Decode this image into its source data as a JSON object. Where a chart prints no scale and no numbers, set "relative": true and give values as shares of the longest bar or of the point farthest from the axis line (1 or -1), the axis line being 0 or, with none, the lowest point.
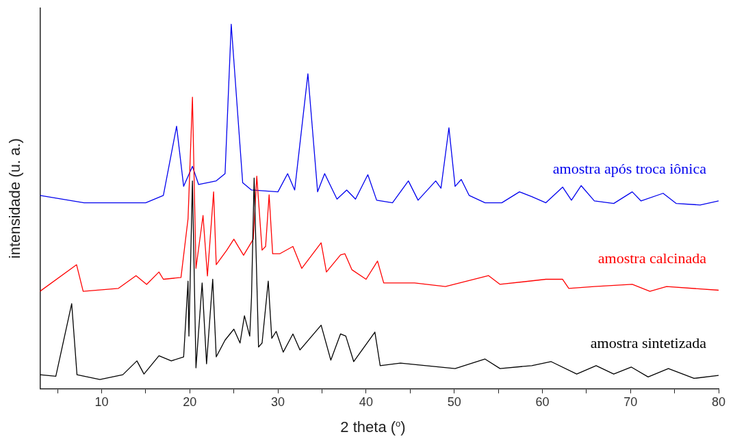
{
  "chart_data": {
    "type": "line",
    "xlabel": "2 theta ($^{o}$)",
    "ylabel": "intensidade (u. a.)",
    "relative": true,
    "xlim": [
      3,
      80
    ],
    "xticks": [
      {
        "value": 5,
        "label": null
      },
      10,
      {
        "value": 15,
        "label": null
      },
      20,
      {
        "value": 25,
        "label": null
      },
      30,
      {
        "value": 35,
        "label": null
      },
      40,
      {
        "value": 45,
        "label": null
      },
      50,
      {
        "value": 55,
        "label": null
      },
      60,
      {
        "value": 65,
        "label": null
      },
      70,
      {
        "value": 75,
        "label": null
      },
      80
    ],
    "grid": false,
    "legend": false,
    "marker": "none",
    "line_style": "solid",
    "series": [
      {
        "name": "amostra sintetizada",
        "color": "#000000",
        "x": [
          3,
          4.8,
          6.6,
          7.2,
          9.8,
          12.4,
          14,
          14.8,
          16.5,
          17.9,
          19.3,
          19.8,
          19.9,
          20.3,
          20.7,
          21.4,
          21.9,
          22.6,
          23,
          24,
          25,
          25.7,
          26.2,
          26.8,
          27,
          27.3,
          27.8,
          28.2,
          28.9,
          29.3,
          29.8,
          30.6,
          31.7,
          32.5,
          34.9,
          36,
          37.1,
          37.7,
          38.6,
          41,
          41.6,
          43.9,
          46.8,
          50.1,
          53.5,
          55.2,
          58.8,
          61,
          63.9,
          66.1,
          68.1,
          70.1,
          72,
          74.3,
          77.2,
          80
        ],
        "values": [
          0.038,
          0.034,
          0.233,
          0.038,
          0.025,
          0.038,
          0.076,
          0.04,
          0.09,
          0.076,
          0.087,
          0.295,
          0.144,
          0.57,
          0.057,
          0.29,
          0.068,
          0.3,
          0.087,
          0.133,
          0.163,
          0.125,
          0.2,
          0.144,
          0.25,
          0.578,
          0.114,
          0.125,
          0.295,
          0.138,
          0.157,
          0.1,
          0.15,
          0.106,
          0.174,
          0.078,
          0.15,
          0.144,
          0.074,
          0.155,
          0.063,
          0.07,
          0.063,
          0.055,
          0.081,
          0.055,
          0.063,
          0.074,
          0.04,
          0.063,
          0.04,
          0.059,
          0.032,
          0.055,
          0.028,
          0.036
        ]
      },
      {
        "name": "amostra calcinada",
        "color": "#ff0000",
        "x": [
          3,
          7.15,
          7.9,
          11.9,
          13.9,
          15.1,
          16.5,
          17,
          19,
          19.8,
          20.3,
          20.7,
          21.5,
          22,
          22.7,
          23,
          24.2,
          25,
          26.1,
          27.2,
          27.6,
          28.2,
          28.6,
          29,
          29.4,
          30.2,
          31.7,
          32.7,
          34.9,
          35.5,
          37.1,
          37.6,
          38.4,
          40,
          41.3,
          42,
          45.5,
          49,
          53.9,
          55.2,
          60.4,
          62.3,
          63,
          65.9,
          70.2,
          72.2,
          74.1,
          80
        ],
        "values": [
          0.267,
          0.34,
          0.267,
          0.275,
          0.31,
          0.286,
          0.32,
          0.3,
          0.305,
          0.466,
          0.8,
          0.33,
          0.475,
          0.309,
          0.54,
          0.34,
          0.38,
          0.41,
          0.366,
          0.41,
          0.583,
          0.38,
          0.39,
          0.532,
          0.37,
          0.37,
          0.39,
          0.33,
          0.4,
          0.32,
          0.367,
          0.37,
          0.326,
          0.3,
          0.35,
          0.29,
          0.29,
          0.28,
          0.31,
          0.286,
          0.3,
          0.3,
          0.275,
          0.28,
          0.286,
          0.267,
          0.28,
          0.27
        ]
      },
      {
        "name": "amostra após troca iônica",
        "color": "#0000ee",
        "x": [
          3,
          8,
          15,
          17,
          18.5,
          19.3,
          20.3,
          21,
          23,
          24,
          24.7,
          26,
          27,
          30,
          31.1,
          31.9,
          33.4,
          34.5,
          35.3,
          36.7,
          37.8,
          38.8,
          40.2,
          41.2,
          43,
          44.8,
          45.9,
          47.9,
          48.5,
          49.4,
          50.1,
          50.8,
          51.7,
          53.5,
          55.4,
          57.4,
          58.8,
          60.4,
          62.3,
          63.3,
          64.4,
          65.9,
          68.1,
          70.2,
          71.2,
          73.7,
          75.2,
          77.9,
          80
        ],
        "values": [
          0.53,
          0.51,
          0.51,
          0.53,
          0.72,
          0.555,
          0.61,
          0.56,
          0.57,
          0.59,
          1,
          0.565,
          0.545,
          0.54,
          0.59,
          0.545,
          0.864,
          0.54,
          0.59,
          0.52,
          0.545,
          0.52,
          0.587,
          0.517,
          0.51,
          0.57,
          0.517,
          0.57,
          0.55,
          0.716,
          0.555,
          0.574,
          0.53,
          0.51,
          0.51,
          0.54,
          0.527,
          0.51,
          0.553,
          0.517,
          0.557,
          0.515,
          0.508,
          0.54,
          0.515,
          0.536,
          0.508,
          0.504,
          0.515
        ]
      }
    ]
  }
}
